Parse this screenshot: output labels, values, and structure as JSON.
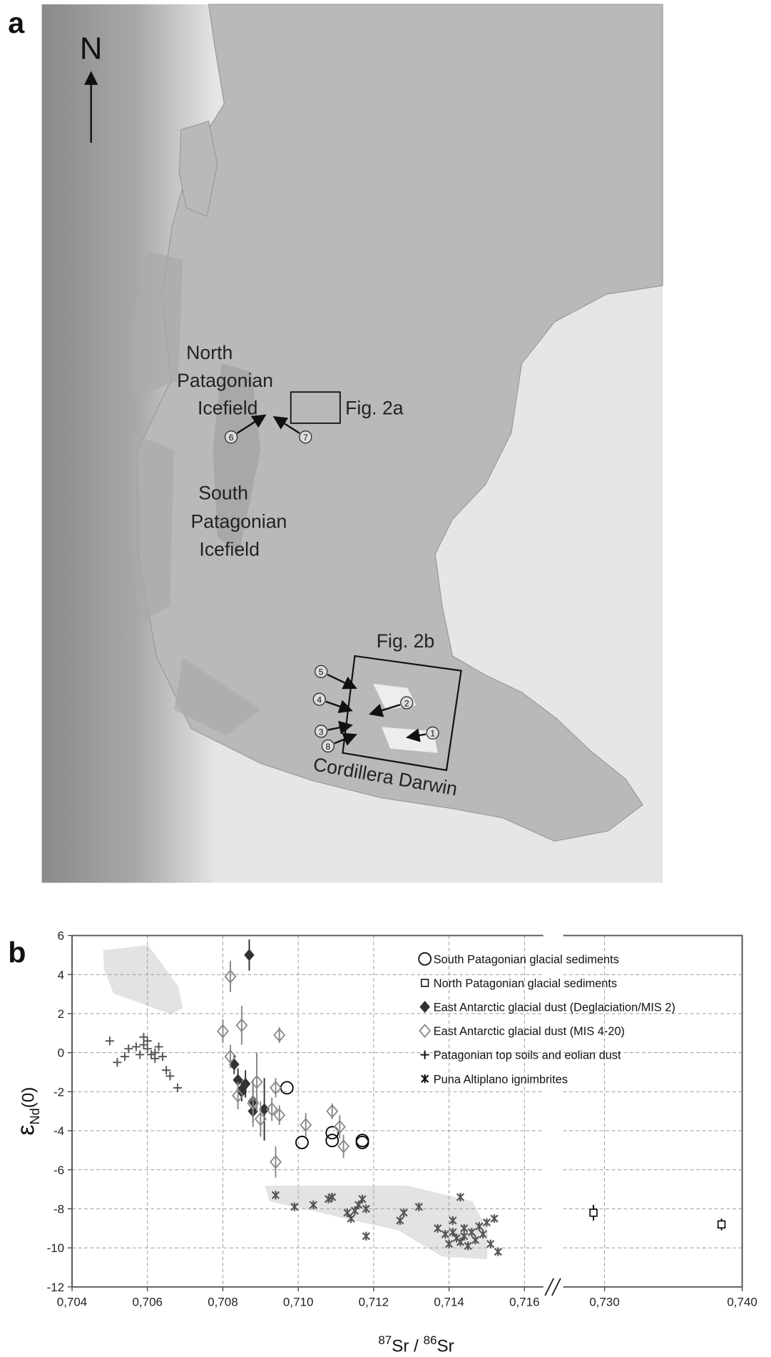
{
  "panel_labels": [
    "a",
    "b"
  ],
  "map": {
    "north": "N",
    "north_icefield": [
      "North",
      "Patagonian",
      "Icefield"
    ],
    "south_icefield": [
      "South",
      "Patagonian",
      "Icefield"
    ],
    "fig_2a": "Fig. 2a",
    "fig_2b": "Fig. 2b",
    "cordillera": "Cordillera Darwin",
    "sites": [
      "1",
      "2",
      "3",
      "4",
      "5",
      "6",
      "7",
      "8"
    ]
  },
  "chart_data": {
    "type": "scatter",
    "x_label": [
      "87",
      "Sr / ",
      "86",
      "Sr"
    ],
    "y_label": [
      "ε",
      "Nd",
      "(0)"
    ],
    "xlim": [
      0.704,
      0.74
    ],
    "x_break": [
      0.7165,
      0.727
    ],
    "xticks": [
      {
        "value": 0.704,
        "label": "0,704"
      },
      {
        "value": 0.706,
        "label": "0,706"
      },
      {
        "value": 0.708,
        "label": "0,708"
      },
      {
        "value": 0.71,
        "label": "0,710"
      },
      {
        "value": 0.712,
        "label": "0,712"
      },
      {
        "value": 0.714,
        "label": "0,714"
      },
      {
        "value": 0.716,
        "label": "0,716"
      },
      {
        "value": 0.73,
        "label": "0,730"
      },
      {
        "value": 0.74,
        "label": "0,740"
      }
    ],
    "ylim": [
      -12,
      6
    ],
    "yticks": [
      -12,
      -10,
      -8,
      -6,
      -4,
      -2,
      0,
      2,
      4,
      6
    ],
    "grid": true,
    "legend": "top-right",
    "series": [
      {
        "name": "South Patagonian glacial sediments",
        "marker": "circle",
        "color": "#000000",
        "x": [
          0.7097,
          0.7101,
          0.7109,
          0.7109,
          0.7117,
          0.7117
        ],
        "values": [
          -1.8,
          -4.6,
          -4.1,
          -4.5,
          -4.5,
          -4.6
        ]
      },
      {
        "name": "North Patagonian glacial sediments",
        "marker": "square",
        "color": "#000000",
        "x": [
          0.7292,
          0.7385
        ],
        "values": [
          -8.2,
          -8.8
        ],
        "errors": [
          0.4,
          0.3
        ]
      },
      {
        "name": "East Antarctic glacial dust (Deglaciation/MIS 2)",
        "marker": "diamond",
        "color": "#333333",
        "x": [
          0.7087,
          0.7083,
          0.7084,
          0.7085,
          0.7086,
          0.7088,
          0.7088,
          0.7091,
          0.7085
        ],
        "values": [
          5.0,
          -0.6,
          -1.4,
          -2.0,
          -1.6,
          -2.5,
          -3.0,
          -2.9,
          -1.9
        ],
        "errors": [
          0.8,
          0.5,
          0.6,
          0.5,
          0.7,
          0.8,
          0.6,
          1.6,
          0.4
        ]
      },
      {
        "name": "East Antarctic glacial dust (MIS 4-20)",
        "marker": "diamond-open",
        "color": "#888888",
        "x": [
          0.7082,
          0.7085,
          0.708,
          0.7095,
          0.7082,
          0.7089,
          0.7094,
          0.7084,
          0.7093,
          0.7095,
          0.709,
          0.7102,
          0.7109,
          0.7111,
          0.7112,
          0.7094,
          0.7088
        ],
        "values": [
          3.9,
          1.4,
          1.1,
          0.9,
          -0.2,
          -1.5,
          -1.8,
          -2.2,
          -2.9,
          -3.2,
          -3.4,
          -3.7,
          -3.0,
          -3.8,
          -4.8,
          -5.6,
          -2.6
        ],
        "errors": [
          0.8,
          1.0,
          0.6,
          0.4,
          0.6,
          1.5,
          0.5,
          0.7,
          0.6,
          0.5,
          0.9,
          0.6,
          0.4,
          0.6,
          0.6,
          0.8,
          1.2
        ]
      },
      {
        "name": "Patagonian top soils and eolian dust",
        "marker": "plus",
        "color": "#555555",
        "x": [
          0.705,
          0.7052,
          0.7054,
          0.7055,
          0.7057,
          0.7059,
          0.7059,
          0.706,
          0.7061,
          0.7062,
          0.7062,
          0.7063,
          0.7064,
          0.7065,
          0.7066,
          0.7068,
          0.7058,
          0.706
        ],
        "values": [
          0.6,
          -0.5,
          -0.2,
          0.2,
          0.3,
          0.4,
          0.8,
          0.2,
          -0.1,
          0.0,
          -0.3,
          0.3,
          -0.2,
          -0.9,
          -1.2,
          -1.8,
          -0.1,
          0.6
        ]
      },
      {
        "name": "Puna Altiplano ignimbrites",
        "marker": "asterisk",
        "color": "#555555",
        "x": [
          0.7094,
          0.7099,
          0.7104,
          0.7108,
          0.7109,
          0.7113,
          0.7114,
          0.7116,
          0.7117,
          0.7118,
          0.7118,
          0.7115,
          0.7127,
          0.7128,
          0.7132,
          0.7137,
          0.7139,
          0.714,
          0.7141,
          0.7142,
          0.7143,
          0.7143,
          0.7144,
          0.7145,
          0.7146,
          0.7147,
          0.7148,
          0.7149,
          0.715,
          0.7151,
          0.7152,
          0.7153,
          0.7141,
          0.7144
        ],
        "values": [
          -7.3,
          -7.9,
          -7.8,
          -7.5,
          -7.4,
          -8.2,
          -8.5,
          -7.8,
          -7.5,
          -8.0,
          -9.4,
          -8.1,
          -8.6,
          -8.2,
          -7.9,
          -9.0,
          -9.3,
          -9.8,
          -8.6,
          -9.5,
          -7.4,
          -9.7,
          -9.4,
          -9.9,
          -9.2,
          -9.6,
          -8.9,
          -9.3,
          -8.7,
          -9.8,
          -8.5,
          -10.2,
          -9.2,
          -9.0
        ]
      }
    ]
  }
}
